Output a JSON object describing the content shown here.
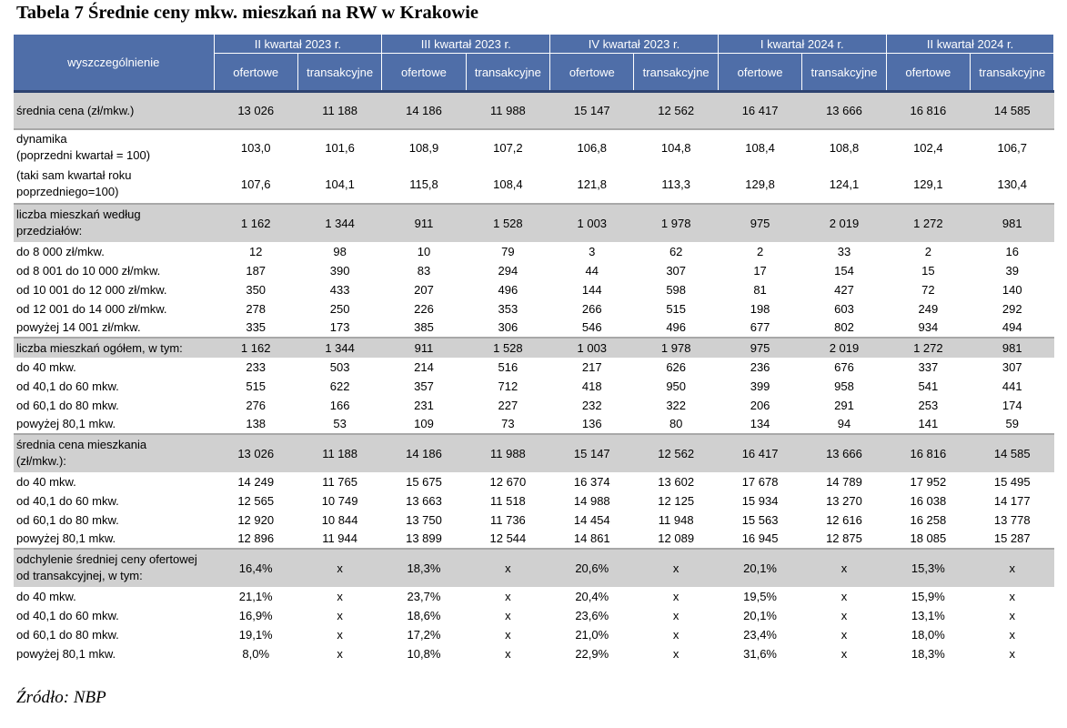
{
  "title": "Tabela 7 Średnie ceny mkw. mieszkań na RW w Krakowie",
  "source": "Źródło: NBP",
  "header": {
    "corner": "wyszczególnienie",
    "quarters": [
      "II kwartał 2023 r.",
      "III kwartał 2023 r.",
      "IV kwartał 2023 r.",
      "I kwartał 2024 r.",
      "II kwartał 2024 r."
    ],
    "sub": [
      "ofertowe",
      "transakcyjne"
    ]
  },
  "rows": [
    {
      "label": "średnia cena (zł/mkw.)",
      "values": [
        "13 026",
        "11 188",
        "14 186",
        "11 988",
        "15 147",
        "12 562",
        "16 417",
        "13 666",
        "16 816",
        "14 585"
      ]
    },
    {
      "label": "dynamika\n(poprzedni kwartał = 100)",
      "values": [
        "103,0",
        "101,6",
        "108,9",
        "107,2",
        "106,8",
        "104,8",
        "108,4",
        "108,8",
        "102,4",
        "106,7"
      ]
    },
    {
      "label": "(taki sam kwartał roku\npoprzedniego=100)",
      "values": [
        "107,6",
        "104,1",
        "115,8",
        "108,4",
        "121,8",
        "113,3",
        "129,8",
        "124,1",
        "129,1",
        "130,4"
      ]
    },
    {
      "label": "liczba mieszkań według\nprzedziałów:",
      "values": [
        "1 162",
        "1 344",
        "911",
        "1 528",
        "1 003",
        "1 978",
        "975",
        "2 019",
        "1 272",
        "981"
      ]
    },
    {
      "label": "do 8 000 zł/mkw.",
      "values": [
        "12",
        "98",
        "10",
        "79",
        "3",
        "62",
        "2",
        "33",
        "2",
        "16"
      ]
    },
    {
      "label": "od 8 001 do 10 000 zł/mkw.",
      "values": [
        "187",
        "390",
        "83",
        "294",
        "44",
        "307",
        "17",
        "154",
        "15",
        "39"
      ]
    },
    {
      "label": "od 10 001 do 12 000 zł/mkw.",
      "values": [
        "350",
        "433",
        "207",
        "496",
        "144",
        "598",
        "81",
        "427",
        "72",
        "140"
      ]
    },
    {
      "label": "od 12 001 do 14 000 zł/mkw.",
      "values": [
        "278",
        "250",
        "226",
        "353",
        "266",
        "515",
        "198",
        "603",
        "249",
        "292"
      ]
    },
    {
      "label": "powyżej 14 001 zł/mkw.",
      "values": [
        "335",
        "173",
        "385",
        "306",
        "546",
        "496",
        "677",
        "802",
        "934",
        "494"
      ]
    },
    {
      "label": "liczba mieszkań ogółem, w tym:",
      "values": [
        "1 162",
        "1 344",
        "911",
        "1 528",
        "1 003",
        "1 978",
        "975",
        "2 019",
        "1 272",
        "981"
      ]
    },
    {
      "label": "do 40 mkw.",
      "values": [
        "233",
        "503",
        "214",
        "516",
        "217",
        "626",
        "236",
        "676",
        "337",
        "307"
      ]
    },
    {
      "label": "od 40,1 do 60 mkw.",
      "values": [
        "515",
        "622",
        "357",
        "712",
        "418",
        "950",
        "399",
        "958",
        "541",
        "441"
      ]
    },
    {
      "label": "od 60,1 do 80 mkw.",
      "values": [
        "276",
        "166",
        "231",
        "227",
        "232",
        "322",
        "206",
        "291",
        "253",
        "174"
      ]
    },
    {
      "label": "powyżej 80,1 mkw.",
      "values": [
        "138",
        "53",
        "109",
        "73",
        "136",
        "80",
        "134",
        "94",
        "141",
        "59"
      ]
    },
    {
      "label": "średnia cena mieszkania\n(zł/mkw.):",
      "values": [
        "13 026",
        "11 188",
        "14 186",
        "11 988",
        "15 147",
        "12 562",
        "16 417",
        "13 666",
        "16 816",
        "14 585"
      ]
    },
    {
      "label": "do 40 mkw.",
      "values": [
        "14 249",
        "11 765",
        "15 675",
        "12 670",
        "16 374",
        "13 602",
        "17 678",
        "14 789",
        "17 952",
        "15 495"
      ]
    },
    {
      "label": "od 40,1 do 60 mkw.",
      "values": [
        "12 565",
        "10 749",
        "13 663",
        "11 518",
        "14 988",
        "12 125",
        "15 934",
        "13 270",
        "16 038",
        "14 177"
      ]
    },
    {
      "label": "od 60,1 do 80 mkw.",
      "values": [
        "12 920",
        "10 844",
        "13 750",
        "11 736",
        "14 454",
        "11 948",
        "15 563",
        "12 616",
        "16 258",
        "13 778"
      ]
    },
    {
      "label": "powyżej 80,1 mkw.",
      "values": [
        "12 896",
        "11 944",
        "13 899",
        "12 544",
        "14 861",
        "12 089",
        "16 945",
        "12 875",
        "18 085",
        "15 287"
      ]
    },
    {
      "label": "odchylenie średniej ceny ofertowej\nod transakcyjnej, w tym:",
      "values": [
        "16,4%",
        "x",
        "18,3%",
        "x",
        "20,6%",
        "x",
        "20,1%",
        "x",
        "15,3%",
        "x"
      ]
    },
    {
      "label": "do 40 mkw.",
      "values": [
        "21,1%",
        "x",
        "23,7%",
        "x",
        "20,4%",
        "x",
        "19,5%",
        "x",
        "15,9%",
        "x"
      ]
    },
    {
      "label": "od 40,1 do 60 mkw.",
      "values": [
        "16,9%",
        "x",
        "18,6%",
        "x",
        "23,6%",
        "x",
        "20,1%",
        "x",
        "13,1%",
        "x"
      ]
    },
    {
      "label": "od 60,1 do 80 mkw.",
      "values": [
        "19,1%",
        "x",
        "17,2%",
        "x",
        "21,0%",
        "x",
        "23,4%",
        "x",
        "18,0%",
        "x"
      ]
    },
    {
      "label": "powyżej 80,1 mkw.",
      "values": [
        "8,0%",
        "x",
        "10,8%",
        "x",
        "22,9%",
        "x",
        "31,6%",
        "x",
        "18,3%",
        "x"
      ]
    }
  ]
}
